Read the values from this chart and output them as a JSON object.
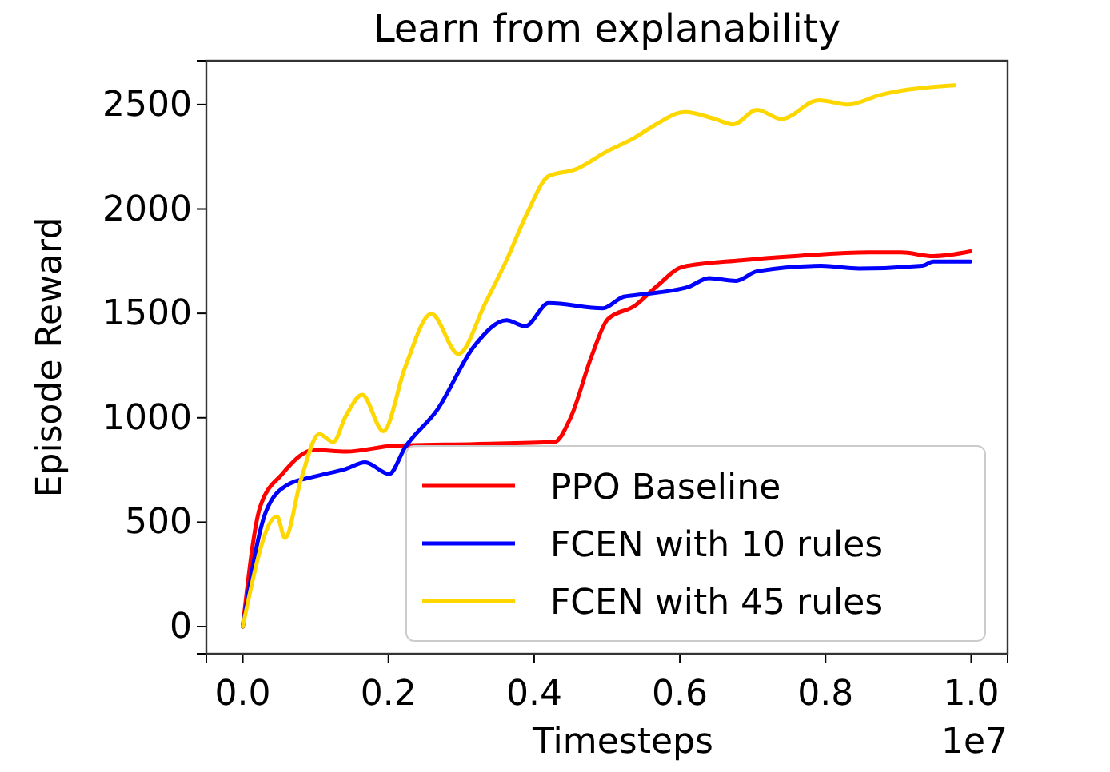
{
  "chart_data": {
    "type": "line",
    "title": "Learn from explanability",
    "xlabel": "Timesteps",
    "ylabel": "Episode Reward",
    "annotations": [
      "1e7"
    ],
    "xlim": [
      -0.05,
      1.05
    ],
    "xticks": [
      {
        "value": 0,
        "label": "0.0"
      },
      {
        "value": 0.2,
        "label": "0.2"
      },
      {
        "value": 0.4,
        "label": "0.4"
      },
      {
        "value": 0.6,
        "label": "0.6"
      },
      {
        "value": 0.8,
        "label": "0.8"
      },
      {
        "value": 1,
        "label": "1.0"
      }
    ],
    "ylim": [
      -130,
      2710
    ],
    "yticks": [
      0,
      500,
      1000,
      1500,
      2000,
      2500
    ],
    "grid": false,
    "legend": "bottom right",
    "line_style": "solid",
    "marker": "none",
    "series": [
      {
        "name": "PPO Baseline",
        "color": "#ff0000",
        "x": [
          0,
          0.024,
          0.054,
          0.098,
          0.142,
          0.208,
          0.318,
          0.428,
          0.45,
          0.479,
          0.501,
          0.538,
          0.567,
          0.604,
          0.684,
          0.758,
          0.86,
          0.904,
          0.948,
          0.999
        ],
        "values": [
          0,
          575,
          730,
          846,
          838,
          866,
          874,
          884,
          1000,
          1296,
          1472,
          1536,
          1626,
          1723,
          1754,
          1774,
          1792,
          1792,
          1774,
          1797
        ]
      },
      {
        "name": "FCEN with 10 rules",
        "color": "#0000ff",
        "x": [
          0,
          0.032,
          0.062,
          0.098,
          0.142,
          0.168,
          0.201,
          0.223,
          0.267,
          0.318,
          0.362,
          0.388,
          0.42,
          0.494,
          0.523,
          0.538,
          0.611,
          0.64,
          0.677,
          0.706,
          0.794,
          0.846,
          0.933,
          0.948,
          0.999
        ],
        "values": [
          0,
          552,
          680,
          718,
          756,
          787,
          731,
          859,
          1038,
          1344,
          1467,
          1439,
          1549,
          1524,
          1580,
          1587,
          1626,
          1669,
          1656,
          1702,
          1728,
          1715,
          1728,
          1748,
          1748
        ]
      },
      {
        "name": "FCEN with 45 rules",
        "color": "#ffd700",
        "x": [
          0,
          0.047,
          0.058,
          0.08,
          0.105,
          0.124,
          0.142,
          0.164,
          0.193,
          0.223,
          0.259,
          0.296,
          0.333,
          0.362,
          0.391,
          0.42,
          0.457,
          0.501,
          0.538,
          0.567,
          0.607,
          0.648,
          0.673,
          0.706,
          0.739,
          0.791,
          0.831,
          0.875,
          0.977
        ],
        "values": [
          0,
          527,
          424,
          705,
          923,
          884,
          1012,
          1110,
          936,
          1242,
          1498,
          1306,
          1549,
          1754,
          1984,
          2158,
          2190,
          2278,
          2341,
          2405,
          2464,
          2431,
          2405,
          2475,
          2431,
          2521,
          2500,
          2546,
          2592
        ]
      }
    ]
  }
}
